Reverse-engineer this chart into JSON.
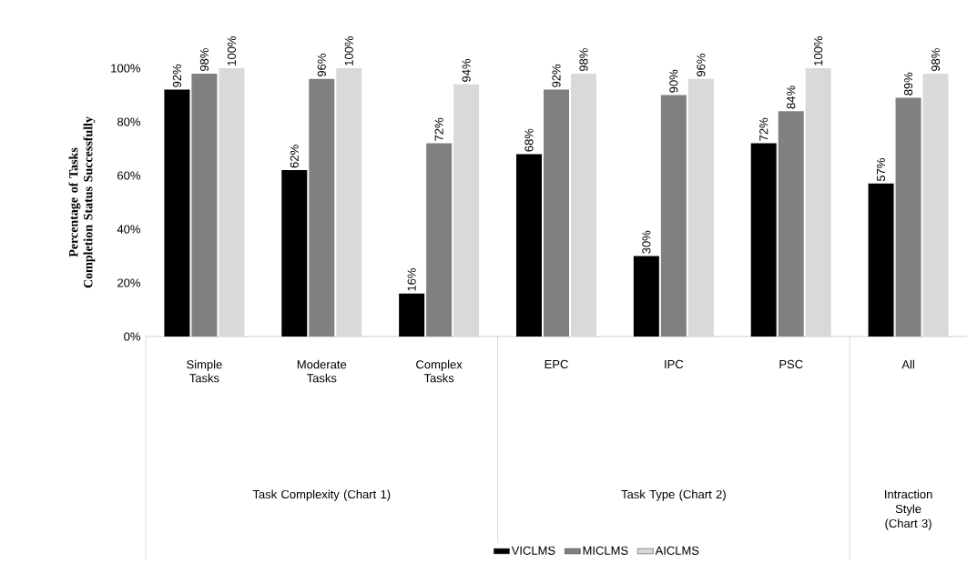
{
  "chart_data": {
    "type": "bar",
    "ylabel": "Percentage of Tasks Completion Status Successfully",
    "categories": [
      "Simple Tasks",
      "Moderate Tasks",
      "Complex Tasks",
      "EPC",
      "IPC",
      "PSC",
      "All"
    ],
    "series": [
      {
        "name": "VICLMS",
        "color": "#000000",
        "values": [
          92,
          62,
          16,
          68,
          30,
          72,
          57
        ],
        "value_labels": [
          "92%",
          "62%",
          "16%",
          "68%",
          "30%",
          "72%",
          "57%"
        ]
      },
      {
        "name": "MICLMS",
        "color": "#808080",
        "values": [
          98,
          96,
          72,
          92,
          90,
          84,
          89
        ],
        "value_labels": [
          "98%",
          "96%",
          "72%",
          "92%",
          "90%",
          "84%",
          "89%"
        ]
      },
      {
        "name": "AICLMS",
        "color": "#d9d9d9",
        "values": [
          100,
          100,
          94,
          98,
          96,
          100,
          98
        ],
        "value_labels": [
          "100%",
          "100%",
          "94%",
          "98%",
          "96%",
          "100%",
          "98%"
        ]
      }
    ],
    "ylim": [
      0,
      100
    ],
    "yticks": [
      {
        "value": 0,
        "label": "0%"
      },
      {
        "value": 20,
        "label": "20%"
      },
      {
        "value": 40,
        "label": "40%"
      },
      {
        "value": 60,
        "label": "60%"
      },
      {
        "value": 80,
        "label": "80%"
      },
      {
        "value": 100,
        "label": "100%"
      }
    ],
    "annotations": [
      "Task Complexity (Chart 1)",
      "Task Type (Chart 2)",
      "Intraction Style (Chart 3)"
    ],
    "legend": "bottom"
  }
}
